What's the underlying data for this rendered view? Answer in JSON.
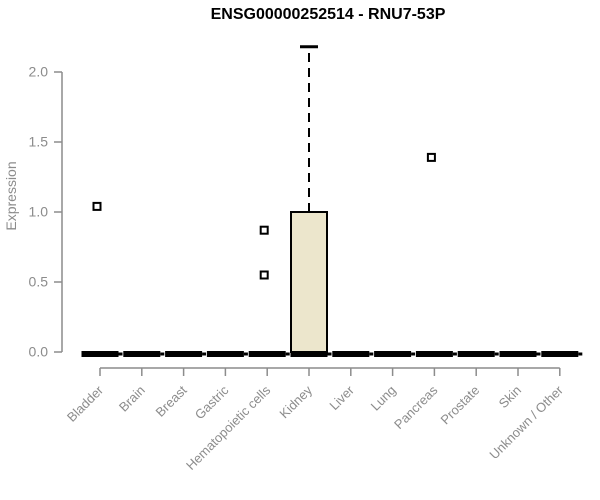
{
  "chart_data": {
    "type": "boxplot",
    "title": "ENSG00000252514 - RNU7-53P",
    "ylabel": "Expression",
    "xlabel": "",
    "ylim": [
      0,
      2.2
    ],
    "yticks": [
      0.0,
      0.5,
      1.0,
      1.5,
      2.0
    ],
    "grid": false,
    "legend": "none",
    "categories": [
      "Bladder",
      "Brain",
      "Breast",
      "Gastric",
      "Hematopoietic cells",
      "Kidney",
      "Liver",
      "Lung",
      "Pancreas",
      "Prostate",
      "Skin",
      "Unknown / Other"
    ],
    "boxes": [
      {
        "category": "Bladder",
        "q1": 0,
        "median": 0,
        "q3": 0,
        "whisker_low": 0,
        "whisker_high": 0,
        "outliers": [
          1.04
        ]
      },
      {
        "category": "Brain",
        "q1": 0,
        "median": 0,
        "q3": 0,
        "whisker_low": 0,
        "whisker_high": 0,
        "outliers": []
      },
      {
        "category": "Breast",
        "q1": 0,
        "median": 0,
        "q3": 0,
        "whisker_low": 0,
        "whisker_high": 0,
        "outliers": []
      },
      {
        "category": "Gastric",
        "q1": 0,
        "median": 0,
        "q3": 0,
        "whisker_low": 0,
        "whisker_high": 0,
        "outliers": []
      },
      {
        "category": "Hematopoietic cells",
        "q1": 0,
        "median": 0,
        "q3": 0,
        "whisker_low": 0,
        "whisker_high": 0,
        "outliers": [
          0.87,
          0.55
        ]
      },
      {
        "category": "Kidney",
        "q1": 0,
        "median": 0,
        "q3": 1.0,
        "whisker_low": 0,
        "whisker_high": 2.18,
        "outliers": []
      },
      {
        "category": "Liver",
        "q1": 0,
        "median": 0,
        "q3": 0,
        "whisker_low": 0,
        "whisker_high": 0,
        "outliers": []
      },
      {
        "category": "Lung",
        "q1": 0,
        "median": 0,
        "q3": 0,
        "whisker_low": 0,
        "whisker_high": 0,
        "outliers": []
      },
      {
        "category": "Pancreas",
        "q1": 0,
        "median": 0,
        "q3": 0,
        "whisker_low": 0,
        "whisker_high": 0,
        "outliers": [
          1.39
        ]
      },
      {
        "category": "Prostate",
        "q1": 0,
        "median": 0,
        "q3": 0,
        "whisker_low": 0,
        "whisker_high": 0,
        "outliers": []
      },
      {
        "category": "Skin",
        "q1": 0,
        "median": 0,
        "q3": 0,
        "whisker_low": 0,
        "whisker_high": 0,
        "outliers": []
      },
      {
        "category": "Unknown / Other",
        "q1": 0,
        "median": 0,
        "q3": 0,
        "whisker_low": 0,
        "whisker_high": 0,
        "outliers": []
      }
    ],
    "colors": {
      "box_fill": "#ece6cc",
      "box_border": "#000000",
      "median": "#000000",
      "axis": "#8c8c8c",
      "tick_label": "#8c8c8c",
      "title": "#000000",
      "outlier_fill": "#ffffff",
      "outlier_border": "#000000",
      "background": "#ffffff"
    }
  }
}
